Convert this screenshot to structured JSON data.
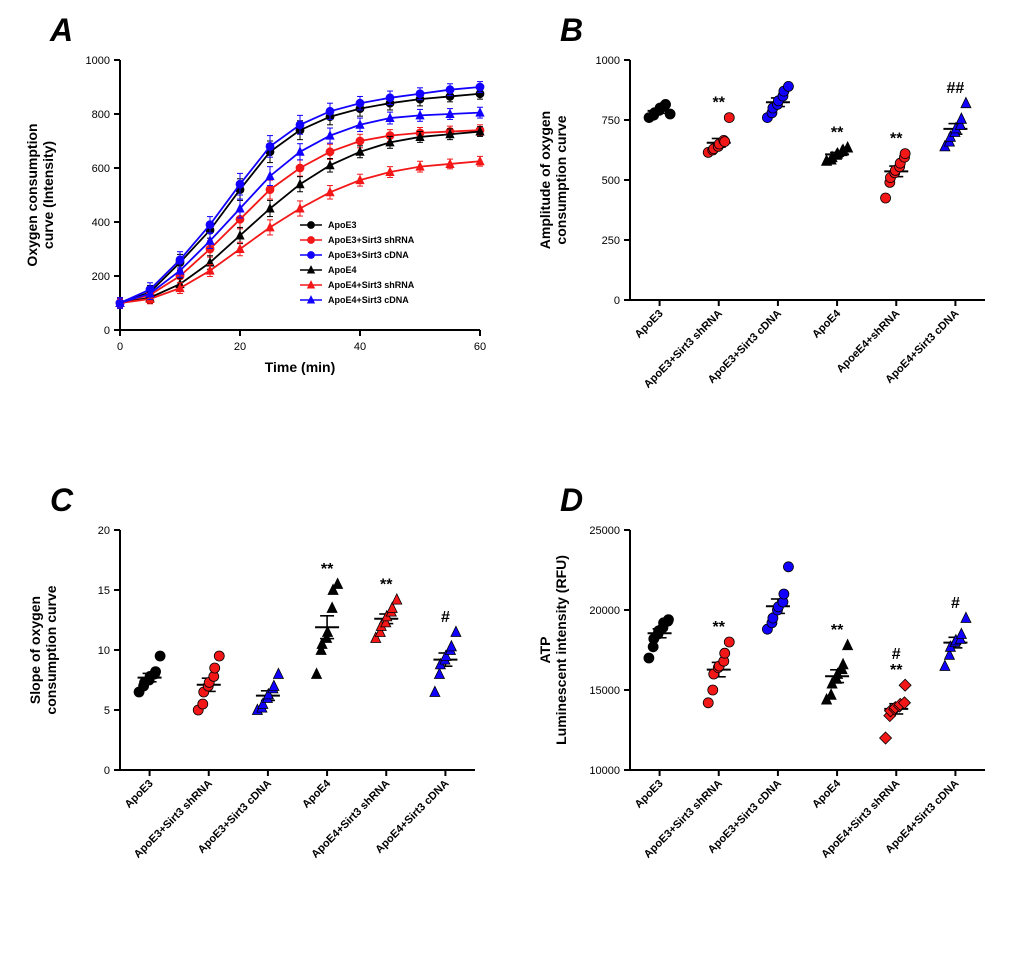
{
  "global": {
    "colors": {
      "black": "#000000",
      "red": "#f31718",
      "blue": "#1100ff",
      "axis": "#000000",
      "bg": "#ffffff"
    },
    "categories": [
      "ApoE3",
      "ApoE3+Sirt3 shRNA",
      "ApoE3+Sirt3 cDNA",
      "ApoE4",
      "ApoE4+Sirt3 shRNA",
      "ApoE4+Sirt3 cDNA"
    ],
    "categories_B": [
      "ApoE3",
      "ApoE3+Sirt3 shRNA",
      "ApoE3+Sirt3 cDNA",
      "ApoE4",
      "ApoeE4+shRNA",
      "ApoE4+Sirt3 cDNA"
    ]
  },
  "panelA": {
    "label": "A",
    "type": "line",
    "x_label": "Time  (min)",
    "y_label": "Oxygen consumption\ncurve (Intensity)",
    "xlim": [
      0,
      60
    ],
    "xtick_step": 20,
    "ylim": [
      0,
      1000
    ],
    "ytick_step": 200,
    "x": [
      0,
      5,
      10,
      15,
      20,
      25,
      30,
      35,
      40,
      45,
      50,
      55,
      60
    ],
    "series": [
      {
        "name": "ApoE3",
        "color": "#000000",
        "marker": "circle",
        "y": [
          100,
          140,
          250,
          370,
          520,
          660,
          740,
          790,
          820,
          840,
          855,
          865,
          875
        ],
        "err": [
          20,
          25,
          30,
          30,
          40,
          40,
          35,
          30,
          28,
          25,
          25,
          20,
          20
        ]
      },
      {
        "name": "ApoE3+Sirt3 shRNA",
        "color": "#f31718",
        "marker": "circle",
        "y": [
          100,
          130,
          200,
          300,
          410,
          520,
          600,
          660,
          700,
          720,
          730,
          735,
          740
        ],
        "err": [
          20,
          22,
          25,
          30,
          35,
          35,
          30,
          28,
          25,
          22,
          20,
          20,
          20
        ]
      },
      {
        "name": "ApoE3+Sirt3 cDNA",
        "color": "#1100ff",
        "marker": "circle",
        "y": [
          100,
          150,
          260,
          390,
          540,
          680,
          760,
          810,
          840,
          860,
          875,
          890,
          900
        ],
        "err": [
          20,
          25,
          30,
          30,
          40,
          40,
          35,
          30,
          25,
          25,
          22,
          22,
          20
        ]
      },
      {
        "name": "ApoE4",
        "color": "#000000",
        "marker": "triangle",
        "y": [
          100,
          120,
          170,
          250,
          350,
          450,
          540,
          610,
          660,
          695,
          715,
          725,
          735
        ],
        "err": [
          18,
          20,
          22,
          25,
          30,
          30,
          28,
          25,
          22,
          22,
          20,
          20,
          18
        ]
      },
      {
        "name": "ApoE4+Sirt3 shRNA",
        "color": "#f31718",
        "marker": "triangle",
        "y": [
          100,
          115,
          155,
          220,
          300,
          380,
          450,
          510,
          555,
          585,
          605,
          615,
          625
        ],
        "err": [
          15,
          18,
          20,
          22,
          25,
          28,
          28,
          25,
          22,
          20,
          20,
          18,
          18
        ]
      },
      {
        "name": "ApoE4+Sirt3 cDNA",
        "color": "#1100ff",
        "marker": "triangle",
        "y": [
          100,
          135,
          220,
          330,
          450,
          570,
          660,
          720,
          760,
          785,
          795,
          800,
          805
        ],
        "err": [
          18,
          22,
          25,
          28,
          35,
          35,
          30,
          28,
          25,
          22,
          22,
          20,
          20
        ]
      }
    ],
    "errorbar_width": 1.2,
    "line_width": 1.8,
    "marker_size": 4
  },
  "panelB": {
    "label": "B",
    "type": "scatter-strip",
    "y_label": "Amplitude of oxygen\nconsumption curve",
    "ylim": [
      0,
      1000
    ],
    "ytick_step": 250,
    "marker_size": 5,
    "groups": [
      {
        "color": "#000000",
        "marker": "circle",
        "points": [
          760,
          770,
          780,
          790,
          800,
          810,
          815,
          775
        ],
        "mean": 788,
        "sem": 10,
        "sig": ""
      },
      {
        "color": "#f31718",
        "marker": "circle",
        "points": [
          615,
          625,
          630,
          640,
          650,
          665,
          660,
          760
        ],
        "mean": 655,
        "sem": 18,
        "sig": "**"
      },
      {
        "color": "#1100ff",
        "marker": "circle",
        "points": [
          760,
          780,
          800,
          815,
          830,
          850,
          870,
          890
        ],
        "mean": 824,
        "sem": 18,
        "sig": ""
      },
      {
        "color": "#000000",
        "marker": "triangle",
        "points": [
          580,
          585,
          595,
          605,
          610,
          620,
          625,
          635
        ],
        "mean": 607,
        "sem": 8,
        "sig": "**"
      },
      {
        "color": "#f31718",
        "marker": "circle",
        "points": [
          425,
          490,
          510,
          530,
          540,
          555,
          570,
          595,
          610
        ],
        "mean": 536,
        "sem": 22,
        "sig": "**"
      },
      {
        "color": "#1100ff",
        "marker": "triangle",
        "points": [
          640,
          660,
          680,
          700,
          715,
          730,
          755,
          820
        ],
        "mean": 713,
        "sem": 22,
        "sig": "##"
      }
    ]
  },
  "panelC": {
    "label": "C",
    "type": "scatter-strip",
    "y_label": "Slope of oxygen\nconsumption curve",
    "ylim": [
      0,
      20
    ],
    "ytick_step": 5,
    "marker_size": 5,
    "groups": [
      {
        "color": "#000000",
        "marker": "circle",
        "points": [
          6.5,
          7.0,
          7.3,
          7.5,
          7.8,
          8.0,
          8.2,
          9.5
        ],
        "mean": 7.7,
        "sem": 0.35,
        "sig": ""
      },
      {
        "color": "#f31718",
        "marker": "circle",
        "points": [
          5.0,
          5.5,
          6.5,
          7.0,
          7.3,
          7.8,
          8.5,
          9.5
        ],
        "mean": 7.1,
        "sem": 0.55,
        "sig": ""
      },
      {
        "color": "#1100ff",
        "marker": "triangle",
        "points": [
          5.0,
          5.2,
          5.5,
          6.0,
          6.3,
          6.8,
          7.0,
          8.0
        ],
        "mean": 6.2,
        "sem": 0.4,
        "sig": ""
      },
      {
        "color": "#000000",
        "marker": "triangle",
        "points": [
          8.0,
          10.0,
          10.5,
          11.0,
          11.5,
          13.5,
          15.0,
          15.5
        ],
        "mean": 11.9,
        "sem": 0.95,
        "sig": "**"
      },
      {
        "color": "#f31718",
        "marker": "triangle",
        "points": [
          11.0,
          11.5,
          12.0,
          12.3,
          12.8,
          13.2,
          13.5,
          14.2
        ],
        "mean": 12.6,
        "sem": 0.4,
        "sig": "**"
      },
      {
        "color": "#1100ff",
        "marker": "triangle",
        "points": [
          6.5,
          8.0,
          8.8,
          9.2,
          9.5,
          10.0,
          10.3,
          11.5
        ],
        "mean": 9.2,
        "sem": 0.55,
        "sig": "#"
      }
    ]
  },
  "panelD": {
    "label": "D",
    "type": "scatter-strip",
    "y_label": "ATP\nLuminescent intensity (RFU)",
    "ylim": [
      10000,
      25000
    ],
    "ytick_step": 5000,
    "marker_size": 5,
    "groups": [
      {
        "color": "#000000",
        "marker": "circle",
        "points": [
          17000,
          17700,
          18200,
          18500,
          18700,
          18900,
          19200,
          19300,
          19400
        ],
        "mean": 18544,
        "sem": 280,
        "sig": ""
      },
      {
        "color": "#f31718",
        "marker": "circle",
        "points": [
          14200,
          15000,
          16000,
          16400,
          16500,
          16800,
          17300,
          18000
        ],
        "mean": 16275,
        "sem": 450,
        "sig": "**"
      },
      {
        "color": "#1100ff",
        "marker": "circle",
        "points": [
          18800,
          19200,
          19500,
          20000,
          20200,
          20500,
          21000,
          22700
        ],
        "mean": 20238,
        "sem": 450,
        "sig": ""
      },
      {
        "color": "#000000",
        "marker": "triangle",
        "points": [
          14400,
          14700,
          15400,
          15700,
          16000,
          16300,
          16600,
          17800
        ],
        "mean": 15863,
        "sem": 400,
        "sig": "**"
      },
      {
        "color": "#f31718",
        "marker": "diamond",
        "points": [
          12000,
          13400,
          13700,
          13800,
          13900,
          14000,
          14100,
          14200,
          15300
        ],
        "mean": 13822,
        "sem": 320,
        "sig": "**",
        "sig2": "#"
      },
      {
        "color": "#1100ff",
        "marker": "triangle",
        "points": [
          16500,
          17200,
          17700,
          18000,
          18100,
          18200,
          18500,
          19500
        ],
        "mean": 17963,
        "sem": 330,
        "sig": "#"
      }
    ]
  }
}
